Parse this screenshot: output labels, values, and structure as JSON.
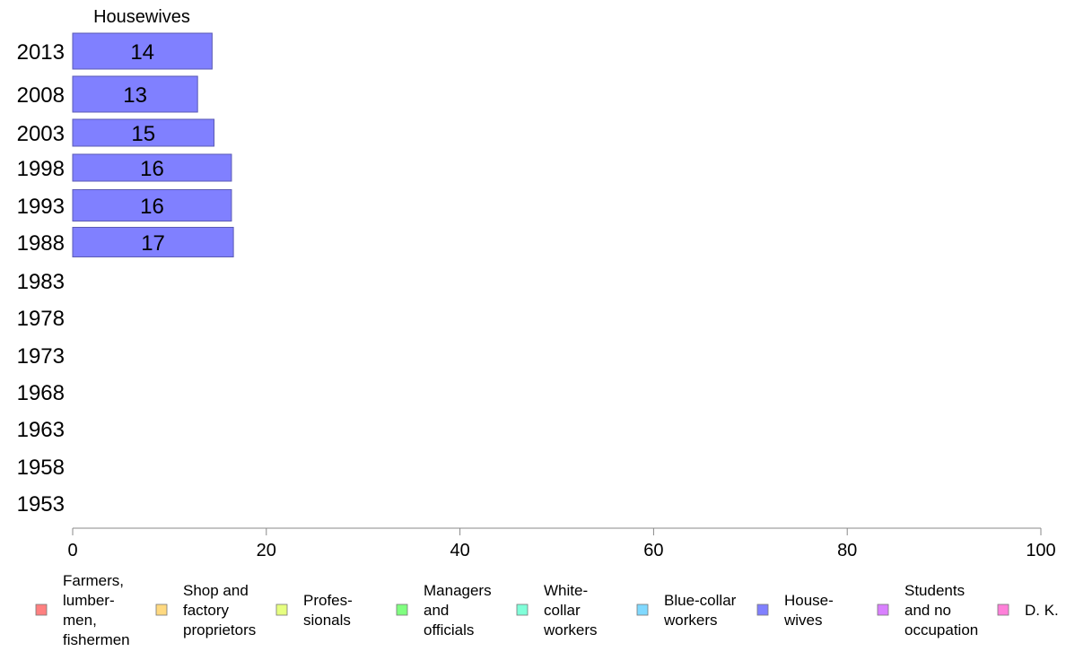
{
  "chart_data": {
    "type": "bar",
    "orientation": "horizontal",
    "title": "Housewives",
    "categories": [
      "2013",
      "2008",
      "2003",
      "1998",
      "1993",
      "1988",
      "1983",
      "1978",
      "1973",
      "1968",
      "1963",
      "1958",
      "1953"
    ],
    "series": [
      {
        "name": "House-\nwives",
        "color": "#8080ff",
        "values": [
          14,
          13,
          15,
          16,
          16,
          17,
          null,
          null,
          null,
          null,
          null,
          null,
          null
        ],
        "plot_values": [
          14.4,
          12.9,
          14.6,
          16.4,
          16.4,
          16.6,
          null,
          null,
          null,
          null,
          null,
          null,
          null
        ]
      }
    ],
    "xlim": [
      0,
      100
    ],
    "xticks": [
      0,
      20,
      40,
      60,
      80,
      100
    ],
    "xlabel": "",
    "ylabel": "",
    "grid": false,
    "legend_position": "bottom",
    "legend": [
      {
        "label": "Farmers,\nlumber-\nmen,\nfishermen",
        "color": "#ff8080"
      },
      {
        "label": "Shop and\nfactory\nproprietors",
        "color": "#ffd980"
      },
      {
        "label": "Profes-\nsionals",
        "color": "#e6ff80"
      },
      {
        "label": "Managers\nand\nofficials",
        "color": "#80ff80"
      },
      {
        "label": "White-\ncollar\nworkers",
        "color": "#80ffd9"
      },
      {
        "label": "Blue-collar\nworkers",
        "color": "#80d9ff"
      },
      {
        "label": "House-\nwives",
        "color": "#8080ff"
      },
      {
        "label": "Students\nand no\noccupation",
        "color": "#d980ff"
      },
      {
        "label": "D. K.",
        "color": "#ff80d9"
      }
    ]
  }
}
